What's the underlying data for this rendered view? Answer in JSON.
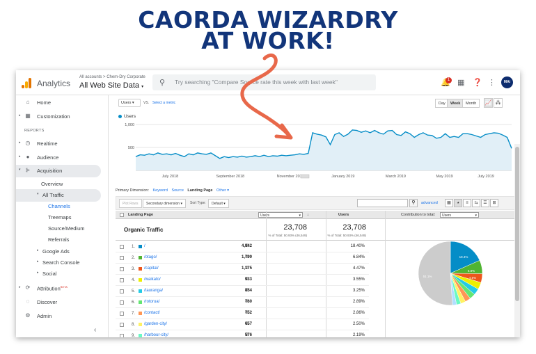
{
  "headline": {
    "line1": "CAORDA WIZARDRY",
    "line2": "AT WORK!"
  },
  "topbar": {
    "brand": "Analytics",
    "breadcrumb": "All accounts > Chem-Dry Corporate",
    "property": "All Web Site Data",
    "search_placeholder": "Try searching \"Compare Source rate this week with last week\"",
    "notification_count": "1",
    "avatar_initials": "MAi"
  },
  "sidebar": {
    "items": [
      {
        "label": "Home",
        "icon": "home-icon"
      },
      {
        "label": "Customization",
        "icon": "grid-icon"
      },
      {
        "section": "REPORTS"
      },
      {
        "label": "Realtime",
        "icon": "clock-icon"
      },
      {
        "label": "Audience",
        "icon": "person-icon"
      },
      {
        "label": "Acquisition",
        "icon": "acquisition-icon"
      },
      {
        "label": "Overview"
      },
      {
        "label": "All Traffic"
      },
      {
        "label": "Channels"
      },
      {
        "label": "Treemaps"
      },
      {
        "label": "Source/Medium"
      },
      {
        "label": "Referrals"
      },
      {
        "label": "Google Ads"
      },
      {
        "label": "Search Console"
      },
      {
        "label": "Social"
      },
      {
        "label": "Attribution",
        "badge": "BETA",
        "icon": "attribution-icon"
      },
      {
        "label": "Discover",
        "icon": "bulb-icon"
      },
      {
        "label": "Admin",
        "icon": "gear-icon"
      }
    ]
  },
  "chart_controls": {
    "metric": "Users",
    "vs": "VS.",
    "select_metric": "Select a metric",
    "granularity": [
      "Day",
      "Week",
      "Month"
    ],
    "active_granularity": "Week"
  },
  "chart_data": {
    "type": "area",
    "series": [
      {
        "name": "Users",
        "values": [
          300,
          340,
          330,
          360,
          340,
          380,
          350,
          360,
          340,
          370,
          330,
          300,
          360,
          340,
          380,
          360,
          350,
          380,
          320,
          260,
          300,
          280,
          300,
          290,
          310,
          290,
          300,
          320,
          300,
          330,
          300,
          320,
          310,
          330,
          320,
          330,
          340,
          360,
          350,
          370,
          820,
          790,
          770,
          730,
          560,
          780,
          820,
          740,
          790,
          880,
          870,
          830,
          860,
          820,
          870,
          820,
          790,
          860,
          870,
          780,
          760,
          840,
          800,
          720,
          780,
          820,
          770,
          760,
          700,
          720,
          800,
          720,
          740,
          720,
          800,
          800,
          780,
          750,
          720,
          780,
          800,
          820,
          810,
          770,
          720,
          480
        ]
      }
    ],
    "x_ticks": [
      "July 2018",
      "September 2018",
      "November 2018",
      "January 2019",
      "March 2019",
      "May 2019",
      "July 2019"
    ],
    "y_ticks": [
      "1,000",
      "500"
    ],
    "ylim": [
      0,
      1000
    ],
    "color": "#058dc7"
  },
  "table_controls": {
    "primary_dimension_label": "Primary Dimension:",
    "dimensions": [
      "Keyword",
      "Source",
      "Landing Page",
      "Other"
    ],
    "active_dimension": "Landing Page",
    "plot_rows": "Plot Rows",
    "secondary_dimension": "Secondary dimension",
    "sort_type_label": "Sort Type:",
    "sort_type": "Default",
    "advanced": "advanced"
  },
  "table": {
    "headers": {
      "landing_page": "Landing Page",
      "metric_select": "Users",
      "users": "Users",
      "contribution": "Contribution to total:",
      "contribution_select": "Users"
    },
    "segment": "Organic Traffic",
    "total_value": "23,708",
    "total_note": "% of Total: 50.93% (46,549)",
    "rows": [
      {
        "n": "1.",
        "page": "/",
        "users": "4,842",
        "pct": "18.40%",
        "color": "#058dc7"
      },
      {
        "n": "2.",
        "page": "/otago/",
        "users": "1,799",
        "pct": "6.84%",
        "color": "#50b432"
      },
      {
        "n": "3.",
        "page": "/capital/",
        "users": "1,175",
        "pct": "4.47%",
        "color": "#ed561b"
      },
      {
        "n": "4.",
        "page": "/waikato/",
        "users": "933",
        "pct": "3.55%",
        "color": "#edef00"
      },
      {
        "n": "5.",
        "page": "/tauranga/",
        "users": "854",
        "pct": "3.25%",
        "color": "#24cbe5"
      },
      {
        "n": "6.",
        "page": "/rotorua/",
        "users": "760",
        "pct": "2.89%",
        "color": "#64e572"
      },
      {
        "n": "7.",
        "page": "/contact/",
        "users": "752",
        "pct": "2.86%",
        "color": "#ff9655"
      },
      {
        "n": "8.",
        "page": "/garden-city/",
        "users": "657",
        "pct": "2.50%",
        "color": "#fff263"
      },
      {
        "n": "9.",
        "page": "/harbour-city/",
        "users": "576",
        "pct": "2.19%",
        "color": "#6af9c4"
      }
    ],
    "pie_labels": {
      "first": "18.4%",
      "second": "6.8%",
      "third": "4.5%",
      "other": "51.1%"
    },
    "pie_slices": [
      18.4,
      6.84,
      4.47,
      3.55,
      3.25,
      2.89,
      2.86,
      2.5,
      2.19,
      2.05,
      51.1
    ],
    "pie_colors": [
      "#058dc7",
      "#50b432",
      "#ed561b",
      "#edef00",
      "#24cbe5",
      "#64e572",
      "#ff9655",
      "#fff263",
      "#6af9c4",
      "#b2deff",
      "#cccccc"
    ]
  }
}
